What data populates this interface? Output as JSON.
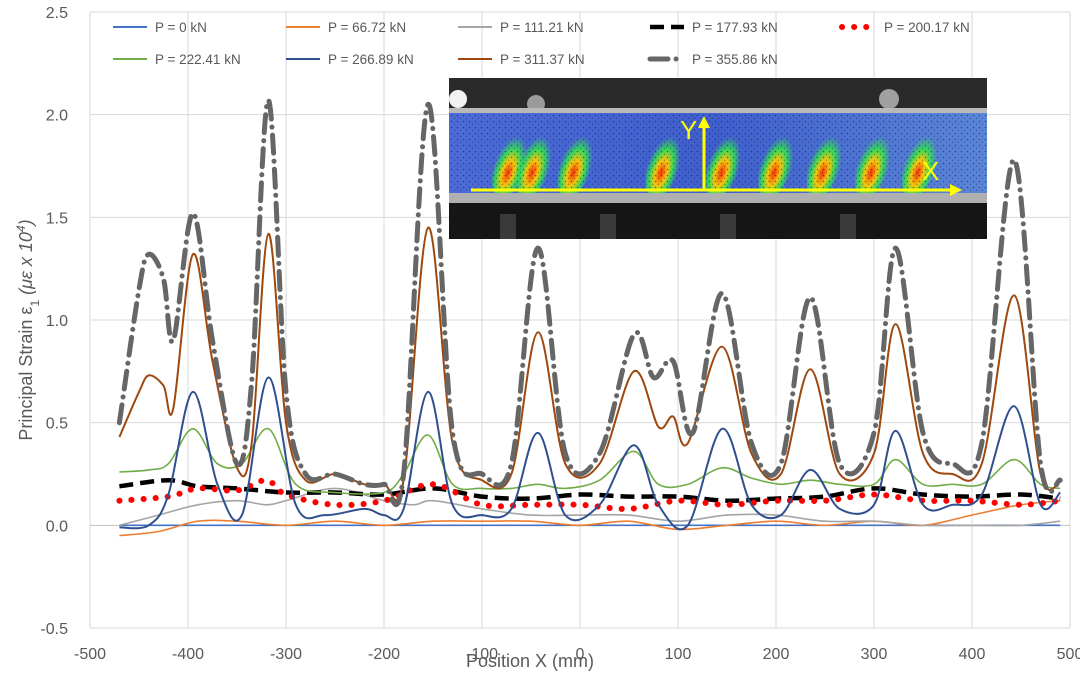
{
  "chart_data": {
    "type": "line",
    "title": "",
    "xlabel": "Position X (mm)",
    "ylabel_prefix": "Principal Strain ε",
    "ylabel_sub": "1",
    "ylabel_unit": " (με x 10",
    "ylabel_sup": "4",
    "ylabel_close": ")",
    "xlim": [
      -500,
      500
    ],
    "ylim": [
      -0.5,
      2.5
    ],
    "x_ticks": [
      -500,
      -400,
      -300,
      -200,
      -100,
      0,
      100,
      200,
      300,
      400,
      500
    ],
    "y_ticks": [
      "-0.5",
      "0.0",
      "0.5",
      "1.0",
      "1.5",
      "2.0",
      "2.5"
    ],
    "y_tick_values": [
      -0.5,
      0,
      0.5,
      1.0,
      1.5,
      2.0,
      2.5
    ],
    "grid": true,
    "legend_position": "top",
    "peaks_x": [
      -440,
      -395,
      -318,
      -155,
      -43,
      55,
      145,
      235,
      322,
      443
    ],
    "series": [
      {
        "name": "P = 0 kN",
        "color": "#4472c4",
        "style": "solid",
        "x": [
          -470,
          490
        ],
        "y": [
          0.0,
          0.0
        ]
      },
      {
        "name": "P = 66.72 kN",
        "color": "#ed7d31",
        "style": "solid",
        "x": [
          -470,
          -430,
          -390,
          -350,
          -300,
          -250,
          -200,
          -150,
          -100,
          -50,
          0,
          50,
          100,
          150,
          200,
          250,
          300,
          350,
          400,
          450,
          490
        ],
        "y": [
          -0.05,
          -0.03,
          0.02,
          0.02,
          0.0,
          0.02,
          0.0,
          0.02,
          0.02,
          0.02,
          0.0,
          0.02,
          -0.02,
          0.0,
          0.02,
          0.0,
          0.02,
          0.0,
          0.05,
          0.1,
          0.12
        ]
      },
      {
        "name": "P = 111.21 kN",
        "color": "#a5a5a5",
        "style": "solid",
        "x": [
          -470,
          -430,
          -390,
          -350,
          -320,
          -300,
          -250,
          -200,
          -170,
          -150,
          -100,
          -50,
          0,
          50,
          100,
          150,
          200,
          250,
          300,
          350,
          400,
          450,
          490
        ],
        "y": [
          0.0,
          0.05,
          0.1,
          0.12,
          0.1,
          0.12,
          0.18,
          0.12,
          0.1,
          0.12,
          0.08,
          0.05,
          0.05,
          0.05,
          0.02,
          0.05,
          0.05,
          0.02,
          0.02,
          0.0,
          0.0,
          0.0,
          0.02
        ]
      },
      {
        "name": "P = 177.93 kN",
        "color": "#000000",
        "style": "dash",
        "x": [
          -470,
          -420,
          -390,
          -350,
          -300,
          -250,
          -200,
          -150,
          -100,
          -50,
          0,
          50,
          100,
          150,
          200,
          250,
          300,
          350,
          400,
          450,
          490
        ],
        "y": [
          0.19,
          0.22,
          0.19,
          0.18,
          0.16,
          0.16,
          0.15,
          0.18,
          0.14,
          0.13,
          0.15,
          0.14,
          0.14,
          0.12,
          0.13,
          0.14,
          0.18,
          0.15,
          0.14,
          0.15,
          0.13
        ]
      },
      {
        "name": "P = 200.17 kN",
        "color": "#ff0000",
        "style": "dot",
        "x": [
          -470,
          -420,
          -390,
          -350,
          -320,
          -300,
          -250,
          -200,
          -150,
          -100,
          -50,
          0,
          50,
          100,
          150,
          200,
          250,
          300,
          350,
          400,
          450,
          490
        ],
        "y": [
          0.12,
          0.14,
          0.18,
          0.17,
          0.22,
          0.15,
          0.1,
          0.12,
          0.2,
          0.1,
          0.1,
          0.1,
          0.08,
          0.12,
          0.1,
          0.12,
          0.12,
          0.15,
          0.12,
          0.12,
          0.1,
          0.12
        ]
      },
      {
        "name": "P = 222.41 kN",
        "color": "#70ad47",
        "style": "solid",
        "x": [
          -470,
          -440,
          -420,
          -395,
          -370,
          -345,
          -318,
          -290,
          -250,
          -200,
          -180,
          -155,
          -130,
          -100,
          -70,
          -43,
          -15,
          20,
          55,
          80,
          110,
          145,
          175,
          205,
          235,
          265,
          300,
          322,
          350,
          380,
          410,
          443,
          470,
          490
        ],
        "y": [
          0.26,
          0.27,
          0.3,
          0.47,
          0.3,
          0.3,
          0.47,
          0.2,
          0.16,
          0.16,
          0.25,
          0.44,
          0.2,
          0.18,
          0.18,
          0.2,
          0.18,
          0.22,
          0.36,
          0.2,
          0.2,
          0.28,
          0.23,
          0.2,
          0.22,
          0.2,
          0.2,
          0.32,
          0.2,
          0.2,
          0.2,
          0.32,
          0.2,
          0.18
        ]
      },
      {
        "name": "P = 266.89 kN",
        "color": "#2f4f8f",
        "style": "solid",
        "x": [
          -470,
          -440,
          -420,
          -395,
          -370,
          -345,
          -318,
          -290,
          -260,
          -220,
          -200,
          -180,
          -155,
          -130,
          -100,
          -70,
          -43,
          -15,
          20,
          55,
          80,
          110,
          145,
          175,
          205,
          235,
          265,
          300,
          322,
          350,
          380,
          410,
          443,
          470,
          490
        ],
        "y": [
          -0.01,
          0.0,
          0.15,
          0.65,
          0.2,
          0.05,
          0.72,
          0.1,
          0.05,
          0.08,
          0.05,
          0.08,
          0.65,
          0.1,
          0.05,
          0.08,
          0.45,
          0.05,
          0.1,
          0.39,
          0.1,
          0.0,
          0.47,
          0.1,
          0.05,
          0.27,
          0.08,
          0.1,
          0.46,
          0.1,
          0.1,
          0.15,
          0.58,
          0.1,
          0.16
        ]
      },
      {
        "name": "P = 311.37 kN",
        "color": "#9e480e",
        "style": "solid",
        "x": [
          -470,
          -450,
          -440,
          -425,
          -415,
          -395,
          -375,
          -350,
          -335,
          -318,
          -300,
          -280,
          -250,
          -220,
          -200,
          -180,
          -155,
          -130,
          -100,
          -70,
          -43,
          -15,
          20,
          55,
          80,
          95,
          110,
          145,
          175,
          205,
          235,
          265,
          300,
          322,
          350,
          380,
          410,
          443,
          470,
          490
        ],
        "y": [
          0.43,
          0.65,
          0.73,
          0.68,
          0.57,
          1.32,
          0.8,
          0.28,
          0.4,
          1.42,
          0.5,
          0.22,
          0.25,
          0.2,
          0.2,
          0.22,
          1.45,
          0.4,
          0.22,
          0.25,
          0.94,
          0.3,
          0.3,
          0.75,
          0.48,
          0.53,
          0.4,
          0.87,
          0.35,
          0.25,
          0.76,
          0.25,
          0.35,
          0.98,
          0.35,
          0.25,
          0.3,
          1.12,
          0.25,
          0.21
        ]
      },
      {
        "name": "P = 355.86 kN",
        "color": "#666666",
        "style": "dashdot",
        "x": [
          -470,
          -450,
          -440,
          -425,
          -415,
          -395,
          -375,
          -350,
          -335,
          -318,
          -300,
          -280,
          -250,
          -220,
          -200,
          -180,
          -155,
          -130,
          -100,
          -70,
          -43,
          -15,
          20,
          55,
          75,
          95,
          115,
          145,
          175,
          205,
          235,
          265,
          300,
          322,
          350,
          380,
          410,
          443,
          470,
          490
        ],
        "y": [
          0.5,
          1.15,
          1.32,
          1.2,
          0.9,
          1.52,
          0.9,
          0.3,
          0.7,
          2.07,
          0.65,
          0.25,
          0.25,
          0.2,
          0.2,
          0.25,
          2.05,
          0.45,
          0.25,
          0.3,
          1.35,
          0.35,
          0.35,
          0.93,
          0.72,
          0.8,
          0.45,
          1.13,
          0.4,
          0.3,
          1.11,
          0.3,
          0.45,
          1.35,
          0.45,
          0.3,
          0.4,
          1.78,
          0.3,
          0.22
        ]
      }
    ]
  },
  "inset": {
    "label_x": "X",
    "label_y": "Y"
  }
}
